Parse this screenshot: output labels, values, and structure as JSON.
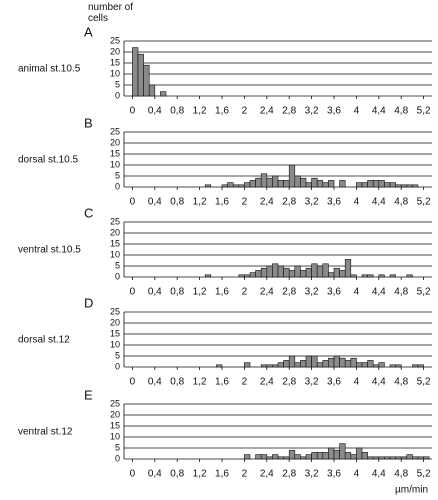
{
  "ylabel": "number of cells",
  "chart_data": [
    {
      "type": "histogram",
      "label": "A",
      "title": "animal st.10.5",
      "bins": [
        0,
        0.1,
        0.2,
        0.3,
        0.4,
        0.5,
        0.6,
        0.7,
        0.8,
        0.9,
        1,
        1.1,
        1.2,
        1.3,
        1.4,
        1.5,
        1.6,
        1.7,
        1.8,
        1.9,
        2,
        2.1,
        2.2,
        2.3,
        2.4,
        2.5,
        2.6,
        2.7,
        2.8,
        2.9,
        3,
        3.1,
        3.2,
        3.3,
        3.4,
        3.5,
        3.6,
        3.7,
        3.8,
        3.9,
        4,
        4.1,
        4.2,
        4.3,
        4.4,
        4.5,
        4.6,
        4.7,
        4.8,
        4.9,
        5,
        5.1,
        5.2,
        5.3
      ],
      "values": [
        22,
        19,
        14,
        5,
        0,
        2,
        0,
        0,
        0,
        0,
        0,
        0,
        0,
        0,
        0,
        0,
        0,
        0,
        0,
        0,
        0,
        0,
        0,
        0,
        0,
        0,
        0,
        0,
        0,
        0,
        0,
        0,
        0,
        0,
        0,
        0,
        0,
        0,
        0,
        0,
        0,
        0,
        0,
        0,
        0,
        0,
        0,
        0,
        0,
        0,
        0,
        0,
        0
      ],
      "color": "#8a8a8a",
      "xlim": [
        -0.15,
        5.35
      ],
      "ylim": [
        0,
        25
      ],
      "yticks": [
        0,
        5,
        10,
        15,
        20,
        25
      ],
      "xticks": [
        0,
        {
          "value": 0.4,
          "label": "0,4"
        },
        {
          "value": 0.8,
          "label": "0,8"
        },
        {
          "value": 1.2,
          "label": "1,2"
        },
        {
          "value": 1.6,
          "label": "1,6"
        },
        2,
        {
          "value": 2.4,
          "label": "2,4"
        },
        {
          "value": 2.8,
          "label": "2,8"
        },
        {
          "value": 3.2,
          "label": "3,2"
        },
        {
          "value": 3.6,
          "label": "3,6"
        },
        4,
        {
          "value": 4.4,
          "label": "4,4"
        },
        {
          "value": 4.8,
          "label": "4,8"
        },
        {
          "value": 5.2,
          "label": "5,2"
        }
      ],
      "grid": true
    },
    {
      "type": "histogram",
      "label": "B",
      "title": "dorsal st.10.5",
      "bins": [
        0,
        0.1,
        0.2,
        0.3,
        0.4,
        0.5,
        0.6,
        0.7,
        0.8,
        0.9,
        1,
        1.1,
        1.2,
        1.3,
        1.4,
        1.5,
        1.6,
        1.7,
        1.8,
        1.9,
        2,
        2.1,
        2.2,
        2.3,
        2.4,
        2.5,
        2.6,
        2.7,
        2.8,
        2.9,
        3,
        3.1,
        3.2,
        3.3,
        3.4,
        3.5,
        3.6,
        3.7,
        3.8,
        3.9,
        4,
        4.1,
        4.2,
        4.3,
        4.4,
        4.5,
        4.6,
        4.7,
        4.8,
        4.9,
        5,
        5.1,
        5.2,
        5.3
      ],
      "values": [
        0,
        0,
        0,
        0,
        0,
        0,
        0,
        0,
        0,
        0,
        0,
        0,
        0,
        1,
        0,
        0,
        1,
        2,
        1,
        1,
        2,
        3,
        4,
        6,
        4,
        5,
        3,
        3,
        10,
        5,
        4,
        2,
        4,
        3,
        2,
        3,
        0,
        3,
        0,
        0,
        2,
        2,
        3,
        3,
        3,
        2,
        2,
        1,
        1,
        1,
        1,
        0,
        0
      ],
      "color": "#8a8a8a",
      "xlim": [
        -0.15,
        5.35
      ],
      "ylim": [
        0,
        25
      ],
      "yticks": [
        0,
        5,
        10,
        15,
        20,
        25
      ],
      "xticks": [
        0,
        {
          "value": 0.4,
          "label": "0,4"
        },
        {
          "value": 0.8,
          "label": "0,8"
        },
        {
          "value": 1.2,
          "label": "1,2"
        },
        {
          "value": 1.6,
          "label": "1,6"
        },
        2,
        {
          "value": 2.4,
          "label": "2,4"
        },
        {
          "value": 2.8,
          "label": "2,8"
        },
        {
          "value": 3.2,
          "label": "3,2"
        },
        {
          "value": 3.6,
          "label": "3,6"
        },
        4,
        {
          "value": 4.4,
          "label": "4,4"
        },
        {
          "value": 4.8,
          "label": "4,8"
        },
        {
          "value": 5.2,
          "label": "5,2"
        }
      ],
      "grid": true
    },
    {
      "type": "histogram",
      "label": "C",
      "title": "ventral st.10.5",
      "bins": [
        0,
        0.1,
        0.2,
        0.3,
        0.4,
        0.5,
        0.6,
        0.7,
        0.8,
        0.9,
        1,
        1.1,
        1.2,
        1.3,
        1.4,
        1.5,
        1.6,
        1.7,
        1.8,
        1.9,
        2,
        2.1,
        2.2,
        2.3,
        2.4,
        2.5,
        2.6,
        2.7,
        2.8,
        2.9,
        3,
        3.1,
        3.2,
        3.3,
        3.4,
        3.5,
        3.6,
        3.7,
        3.8,
        3.9,
        4,
        4.1,
        4.2,
        4.3,
        4.4,
        4.5,
        4.6,
        4.7,
        4.8,
        4.9,
        5,
        5.1,
        5.2,
        5.3
      ],
      "values": [
        0,
        0,
        0,
        0,
        0,
        0,
        0,
        0,
        0,
        0,
        0,
        0,
        0,
        1,
        0,
        0,
        0,
        0,
        0,
        1,
        1,
        2,
        3,
        4,
        5,
        6,
        5,
        4,
        3,
        5,
        3,
        4,
        6,
        5,
        6,
        2,
        4,
        3,
        8,
        1,
        0,
        1,
        1,
        0,
        1,
        0,
        1,
        0,
        0,
        1,
        0,
        0,
        0
      ],
      "color": "#8a8a8a",
      "xlim": [
        -0.15,
        5.35
      ],
      "ylim": [
        0,
        25
      ],
      "yticks": [
        0,
        5,
        10,
        15,
        20,
        25
      ],
      "xticks": [
        0,
        {
          "value": 0.4,
          "label": "0,4"
        },
        {
          "value": 0.8,
          "label": "0,8"
        },
        {
          "value": 1.2,
          "label": "1,2"
        },
        {
          "value": 1.6,
          "label": "1,6"
        },
        2,
        {
          "value": 2.4,
          "label": "2,4"
        },
        {
          "value": 2.8,
          "label": "2,8"
        },
        {
          "value": 3.2,
          "label": "3,2"
        },
        {
          "value": 3.6,
          "label": "3,6"
        },
        4,
        {
          "value": 4.4,
          "label": "4,4"
        },
        {
          "value": 4.8,
          "label": "4,8"
        },
        {
          "value": 5.2,
          "label": "5,2"
        }
      ],
      "grid": true
    },
    {
      "type": "histogram",
      "label": "D",
      "title": "dorsal st.12",
      "bins": [
        0,
        0.1,
        0.2,
        0.3,
        0.4,
        0.5,
        0.6,
        0.7,
        0.8,
        0.9,
        1,
        1.1,
        1.2,
        1.3,
        1.4,
        1.5,
        1.6,
        1.7,
        1.8,
        1.9,
        2,
        2.1,
        2.2,
        2.3,
        2.4,
        2.5,
        2.6,
        2.7,
        2.8,
        2.9,
        3,
        3.1,
        3.2,
        3.3,
        3.4,
        3.5,
        3.6,
        3.7,
        3.8,
        3.9,
        4,
        4.1,
        4.2,
        4.3,
        4.4,
        4.5,
        4.6,
        4.7,
        4.8,
        4.9,
        5,
        5.1,
        5.2,
        5.3
      ],
      "values": [
        0,
        0,
        0,
        0,
        0,
        0,
        0,
        0,
        0,
        0,
        0,
        0,
        0,
        0,
        0,
        1,
        0,
        0,
        0,
        0,
        2,
        0,
        0,
        1,
        1,
        1,
        2,
        3,
        5,
        2,
        3,
        5,
        5,
        2,
        3,
        4,
        5,
        4,
        3,
        4,
        2,
        2,
        3,
        1,
        2,
        0,
        1,
        1,
        0,
        0,
        1,
        1,
        0
      ],
      "color": "#8a8a8a",
      "xlim": [
        -0.15,
        5.35
      ],
      "ylim": [
        0,
        25
      ],
      "yticks": [
        0,
        5,
        10,
        15,
        20,
        25
      ],
      "xticks": [
        0,
        {
          "value": 0.4,
          "label": "0,4"
        },
        {
          "value": 0.8,
          "label": "0,8"
        },
        {
          "value": 1.2,
          "label": "1,2"
        },
        {
          "value": 1.6,
          "label": "1,6"
        },
        2,
        {
          "value": 2.4,
          "label": "2,4"
        },
        {
          "value": 2.8,
          "label": "2,8"
        },
        {
          "value": 3.2,
          "label": "3,2"
        },
        {
          "value": 3.6,
          "label": "3,6"
        },
        4,
        {
          "value": 4.4,
          "label": "4,4"
        },
        {
          "value": 4.8,
          "label": "4,8"
        },
        {
          "value": 5.2,
          "label": "5,2"
        }
      ],
      "grid": true
    },
    {
      "type": "histogram",
      "label": "E",
      "title": "ventral st.12",
      "xlabel": "µm/min",
      "bins": [
        0,
        0.1,
        0.2,
        0.3,
        0.4,
        0.5,
        0.6,
        0.7,
        0.8,
        0.9,
        1,
        1.1,
        1.2,
        1.3,
        1.4,
        1.5,
        1.6,
        1.7,
        1.8,
        1.9,
        2,
        2.1,
        2.2,
        2.3,
        2.4,
        2.5,
        2.6,
        2.7,
        2.8,
        2.9,
        3,
        3.1,
        3.2,
        3.3,
        3.4,
        3.5,
        3.6,
        3.7,
        3.8,
        3.9,
        4,
        4.1,
        4.2,
        4.3,
        4.4,
        4.5,
        4.6,
        4.7,
        4.8,
        4.9,
        5,
        5.1,
        5.2,
        5.3
      ],
      "values": [
        0,
        0,
        0,
        0,
        0,
        0,
        0,
        0,
        0,
        0,
        0,
        0,
        0,
        0,
        0,
        0,
        0,
        0,
        0,
        0,
        2,
        0,
        2,
        2,
        1,
        2,
        1,
        1,
        4,
        2,
        1,
        2,
        3,
        3,
        3,
        5,
        4,
        7,
        3,
        2,
        5,
        3,
        1,
        1,
        1,
        1,
        1,
        1,
        1,
        2,
        1,
        1,
        1
      ],
      "color": "#8a8a8a",
      "xlim": [
        -0.15,
        5.35
      ],
      "ylim": [
        0,
        25
      ],
      "yticks": [
        0,
        5,
        10,
        15,
        20,
        25
      ],
      "xticks": [
        0,
        {
          "value": 0.4,
          "label": "0,4"
        },
        {
          "value": 0.8,
          "label": "0,8"
        },
        {
          "value": 1.2,
          "label": "1,2"
        },
        {
          "value": 1.6,
          "label": "1,6"
        },
        2,
        {
          "value": 2.4,
          "label": "2,4"
        },
        {
          "value": 2.8,
          "label": "2,8"
        },
        {
          "value": 3.2,
          "label": "3,2"
        },
        {
          "value": 3.6,
          "label": "3,6"
        },
        4,
        {
          "value": 4.4,
          "label": "4,4"
        },
        {
          "value": 4.8,
          "label": "4,8"
        },
        {
          "value": 5.2,
          "label": "5,2"
        }
      ],
      "grid": true
    }
  ]
}
